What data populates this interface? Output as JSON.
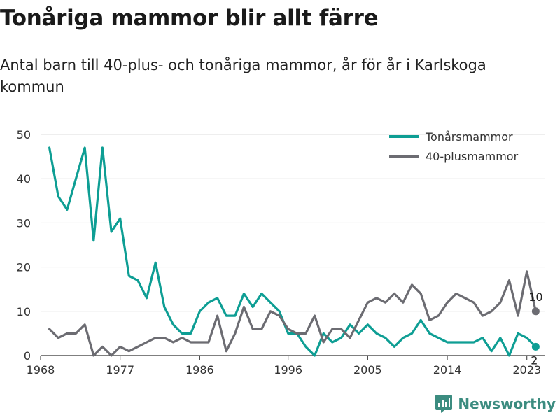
{
  "title": "Tonåriga mammor blir allt färre",
  "subtitle": "Antal barn till 40-plus- och tonåriga mammor, år för år i Karlskoga kommun",
  "brand": "Newsworthy",
  "colors": {
    "teen": "#0e9e94",
    "forty": "#6c6c72",
    "grid": "#dddddd"
  },
  "chart_data": {
    "type": "line",
    "x": [
      1969,
      1970,
      1971,
      1972,
      1973,
      1974,
      1975,
      1976,
      1977,
      1978,
      1979,
      1980,
      1981,
      1982,
      1983,
      1984,
      1985,
      1986,
      1987,
      1988,
      1989,
      1990,
      1991,
      1992,
      1993,
      1994,
      1995,
      1996,
      1997,
      1998,
      1999,
      2000,
      2001,
      2002,
      2003,
      2004,
      2005,
      2006,
      2007,
      2008,
      2009,
      2010,
      2011,
      2012,
      2013,
      2014,
      2015,
      2016,
      2017,
      2018,
      2019,
      2020,
      2021,
      2022,
      2023,
      2024
    ],
    "series": [
      {
        "name": "Tonårsmammor",
        "color": "#0e9e94",
        "values": [
          47,
          36,
          33,
          40,
          47,
          26,
          47,
          28,
          31,
          18,
          17,
          13,
          21,
          11,
          7,
          5,
          5,
          10,
          12,
          13,
          9,
          9,
          14,
          11,
          14,
          12,
          10,
          5,
          5,
          2,
          0,
          5,
          3,
          4,
          7,
          5,
          7,
          5,
          4,
          2,
          4,
          5,
          8,
          5,
          4,
          3,
          3,
          3,
          3,
          4,
          1,
          4,
          0,
          5,
          4,
          2
        ]
      },
      {
        "name": "40-plusmammor",
        "color": "#6c6c72",
        "values": [
          6,
          4,
          5,
          5,
          7,
          0,
          2,
          0,
          2,
          1,
          2,
          3,
          4,
          4,
          3,
          4,
          3,
          3,
          3,
          9,
          1,
          5,
          11,
          6,
          6,
          10,
          9,
          6,
          5,
          5,
          9,
          3,
          6,
          6,
          4,
          8,
          12,
          13,
          12,
          14,
          12,
          16,
          14,
          8,
          9,
          12,
          14,
          13,
          12,
          9,
          10,
          12,
          17,
          9,
          19,
          10
        ]
      }
    ],
    "xticks": [
      "1968",
      "1977",
      "1986",
      "1996",
      "2005",
      "2014",
      "2023"
    ],
    "yticks": [
      "0",
      "10",
      "20",
      "30",
      "40",
      "50"
    ],
    "ylim": [
      0,
      50
    ],
    "xlim": [
      1968,
      2025
    ],
    "grid": true,
    "legend_position": "top-right",
    "end_labels": [
      "10",
      "2"
    ]
  }
}
